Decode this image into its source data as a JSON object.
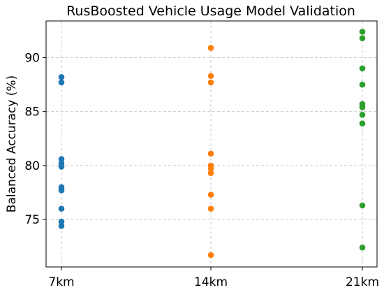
{
  "chart_data": {
    "type": "scatter",
    "title": "RusBoosted Vehicle Usage Model Validation",
    "xlabel": "",
    "ylabel": "Balanced Accuracy (%)",
    "categories": [
      "7km",
      "14km",
      "21km"
    ],
    "ylim": [
      70.6,
      93.4
    ],
    "yticks": [
      75,
      80,
      85,
      90
    ],
    "grid": true,
    "series": [
      {
        "category": "7km",
        "color": "#1f77b4",
        "values": [
          88.2,
          87.7,
          80.6,
          80.2,
          79.9,
          78.0,
          77.7,
          76.0,
          74.8,
          74.4
        ]
      },
      {
        "category": "14km",
        "color": "#ff7f0e",
        "values": [
          90.9,
          88.3,
          87.7,
          81.1,
          80.0,
          79.7,
          79.3,
          77.3,
          76.0,
          71.7
        ]
      },
      {
        "category": "21km",
        "color": "#2ca02c",
        "values": [
          92.4,
          91.8,
          89.0,
          87.5,
          85.7,
          85.4,
          84.7,
          83.9,
          76.3,
          72.4
        ]
      }
    ]
  }
}
